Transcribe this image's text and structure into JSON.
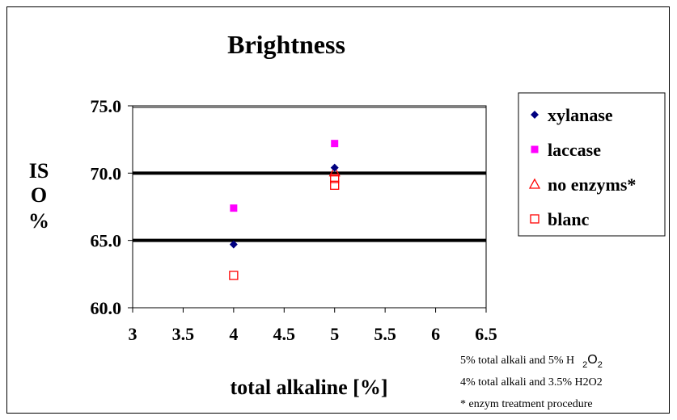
{
  "chart_data": {
    "type": "scatter",
    "title": "Brightness",
    "xlabel": "total alkaline [%]",
    "ylabel_lines": [
      "IS",
      "O",
      "%"
    ],
    "xlim": [
      3,
      6.5
    ],
    "ylim": [
      60,
      75
    ],
    "xticks": [
      "3",
      "3.5",
      "4",
      "4.5",
      "5",
      "5.5",
      "6",
      "6.5"
    ],
    "yticks": [
      "60.0",
      "65.0",
      "70.0",
      "75.0"
    ],
    "gridlines_y": [
      65,
      70
    ],
    "legend_position": "right",
    "series": [
      {
        "name": "xylanase",
        "marker": "diamond",
        "color": "#000080",
        "points": [
          {
            "x": 4,
            "y": 64.7
          },
          {
            "x": 5,
            "y": 70.4
          }
        ]
      },
      {
        "name": "laccase",
        "marker": "square-filled",
        "color": "#ff00ff",
        "points": [
          {
            "x": 4,
            "y": 67.4
          },
          {
            "x": 5,
            "y": 72.2
          }
        ]
      },
      {
        "name": "no enzyms*",
        "marker": "triangle-open",
        "color": "#ff0000",
        "points": [
          {
            "x": 5,
            "y": 70.1
          }
        ]
      },
      {
        "name": "blanc",
        "marker": "square-open",
        "color": "#ff0000",
        "points": [
          {
            "x": 4,
            "y": 62.4
          },
          {
            "x": 5,
            "y": 69.6
          },
          {
            "x": 5,
            "y": 69.1
          }
        ]
      }
    ],
    "notes": [
      {
        "text": "5% total alkali and 5% H",
        "sub1": "2",
        "mid": "O",
        "sub2": "2"
      },
      {
        "text": "4% total alkali and 3.5% H2O2"
      },
      {
        "text": "* enzym treatment procedure"
      }
    ]
  }
}
